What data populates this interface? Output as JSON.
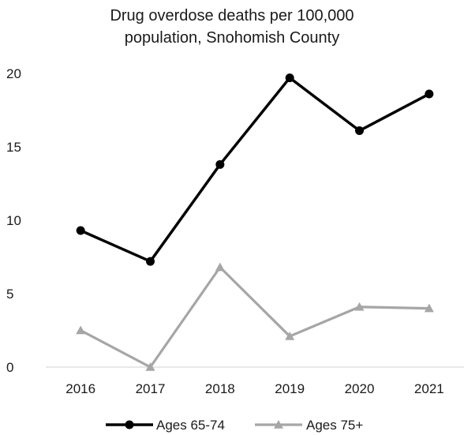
{
  "chart_data": {
    "type": "line",
    "title_lines": [
      "Drug overdose deaths per 100,000",
      "population, Snohomish County"
    ],
    "categories": [
      "2016",
      "2017",
      "2018",
      "2019",
      "2020",
      "2021"
    ],
    "ylim": [
      0,
      20
    ],
    "yticks": [
      "0",
      "5",
      "10",
      "15",
      "20"
    ],
    "grid": false,
    "legend_position": "bottom",
    "series": [
      {
        "name": "Ages 65-74",
        "values": [
          9.3,
          7.2,
          13.8,
          19.7,
          16.1,
          18.6
        ],
        "color": "#000000",
        "marker": "circle"
      },
      {
        "name": "Ages 75+",
        "values": [
          2.5,
          0.0,
          6.8,
          2.1,
          4.1,
          4.0
        ],
        "color": "#a6a6a6",
        "marker": "triangle"
      }
    ]
  }
}
